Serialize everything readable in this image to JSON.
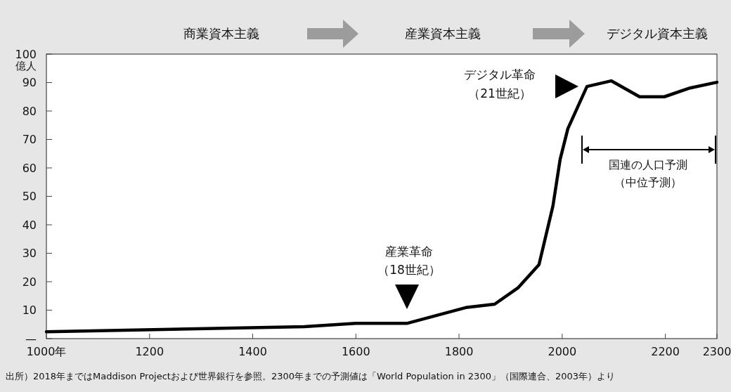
{
  "chart_data": {
    "type": "line",
    "ylabel": "億人",
    "x": [
      1000,
      1500,
      1600,
      1700,
      1813,
      1869,
      1914,
      1955,
      1982,
      1996,
      2011,
      2048,
      2095,
      2150,
      2198,
      2248,
      2300
    ],
    "series": [
      {
        "color": "#000000",
        "values": [
          2.4,
          4.2,
          5.4,
          5.4,
          10.9,
          12.1,
          17.8,
          26,
          46.6,
          63,
          73.8,
          88.6,
          90.6,
          85,
          85,
          88.1,
          90.1
        ]
      }
    ],
    "xlim": [
      1000,
      2300
    ],
    "xticks": [
      {
        "value": 1000,
        "label": "1000年"
      },
      1200,
      1400,
      1600,
      1800,
      2000,
      2200,
      2300
    ],
    "ylim": [
      0,
      100
    ],
    "yticks": [
      {
        "value": 0,
        "label": "—"
      },
      10,
      20,
      30,
      40,
      50,
      60,
      70,
      80,
      90,
      100
    ],
    "grid": false,
    "marker": "none",
    "line_style": "solid",
    "annotations": [
      "商業資本主義",
      "産業資本主義",
      "デジタル資本主義",
      "産業革命",
      "（18世紀）",
      "デジタル革命",
      "（21世紀）",
      "国連の人口予測",
      "（中位予測）",
      "出所）2018年まではMaddison Projectおよび世界銀行を参照。2300年までの予測値は「World Population in 2300」（国際連合、2003年）より"
    ]
  }
}
